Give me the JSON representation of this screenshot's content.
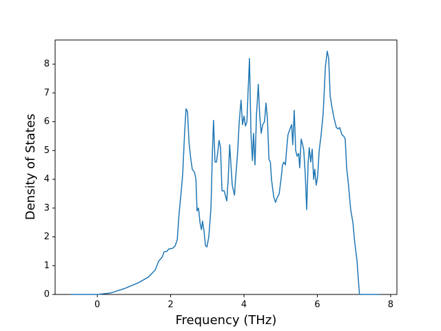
{
  "chart_data": {
    "type": "line",
    "xlabel": "Frequency (THz)",
    "ylabel": "Density of States",
    "xlim": [
      -1.15,
      8.17
    ],
    "ylim": [
      0,
      8.84
    ],
    "xticks": [
      0,
      2,
      4,
      6,
      8
    ],
    "yticks": [
      0,
      1,
      2,
      3,
      4,
      5,
      6,
      7,
      8
    ],
    "series": [
      {
        "color": "#1f77b4",
        "x": [
          -0.73,
          0,
          0.36,
          0.73,
          1.11,
          1.39,
          1.58,
          1.67,
          1.77,
          1.82,
          1.9,
          1.95,
          2.05,
          2.12,
          2.18,
          2.23,
          2.29,
          2.33,
          2.38,
          2.42,
          2.46,
          2.5,
          2.55,
          2.59,
          2.65,
          2.69,
          2.72,
          2.76,
          2.8,
          2.84,
          2.87,
          2.91,
          2.95,
          2.99,
          3.04,
          3.1,
          3.14,
          3.17,
          3.21,
          3.25,
          3.29,
          3.32,
          3.36,
          3.4,
          3.46,
          3.49,
          3.53,
          3.57,
          3.61,
          3.64,
          3.68,
          3.74,
          3.77,
          3.83,
          3.87,
          3.92,
          3.96,
          4.0,
          4.04,
          4.08,
          4.11,
          4.15,
          4.19,
          4.23,
          4.26,
          4.3,
          4.34,
          4.39,
          4.43,
          4.47,
          4.51,
          4.56,
          4.6,
          4.64,
          4.68,
          4.72,
          4.75,
          4.81,
          4.86,
          4.9,
          4.96,
          5.01,
          5.05,
          5.09,
          5.13,
          5.16,
          5.2,
          5.24,
          5.3,
          5.33,
          5.37,
          5.41,
          5.45,
          5.49,
          5.52,
          5.56,
          5.6,
          5.63,
          5.67,
          5.71,
          5.75,
          5.78,
          5.82,
          5.86,
          5.9,
          5.93,
          5.97,
          6.01,
          6.05,
          6.1,
          6.16,
          6.22,
          6.27,
          6.31,
          6.35,
          6.4,
          6.46,
          6.52,
          6.57,
          6.61,
          6.67,
          6.72,
          6.76,
          6.8,
          6.85,
          6.91,
          6.97,
          7.02,
          7.08,
          7.12,
          7.15,
          7.72
        ],
        "values": [
          0,
          0,
          0.05,
          0.2,
          0.4,
          0.6,
          0.85,
          1.15,
          1.3,
          1.48,
          1.5,
          1.58,
          1.6,
          1.68,
          1.9,
          2.8,
          3.6,
          4.2,
          5.6,
          6.45,
          6.35,
          5.3,
          4.7,
          4.35,
          4.25,
          4.0,
          2.9,
          3.0,
          2.5,
          2.25,
          2.55,
          2.2,
          1.7,
          1.65,
          2.0,
          3.0,
          5.0,
          6.05,
          4.6,
          4.6,
          5.0,
          5.35,
          5.1,
          3.6,
          3.6,
          3.45,
          3.25,
          4.0,
          5.2,
          4.6,
          3.8,
          3.45,
          4.0,
          5.0,
          6.0,
          6.75,
          5.9,
          6.2,
          5.85,
          6.0,
          7.0,
          8.2,
          5.6,
          4.65,
          5.6,
          4.5,
          6.2,
          7.3,
          6.2,
          5.6,
          5.9,
          6.0,
          6.65,
          6.1,
          4.7,
          4.6,
          4.0,
          3.4,
          3.2,
          3.35,
          3.5,
          4.0,
          4.5,
          4.6,
          4.5,
          5.0,
          5.55,
          5.7,
          5.9,
          5.2,
          6.4,
          5.0,
          4.8,
          4.9,
          4.4,
          5.4,
          5.2,
          5.0,
          4.2,
          2.95,
          4.6,
          5.1,
          4.6,
          5.05,
          4.0,
          4.35,
          3.8,
          4.1,
          5.0,
          5.5,
          6.3,
          7.9,
          8.45,
          8.2,
          6.9,
          6.5,
          6.1,
          5.8,
          5.75,
          5.8,
          5.55,
          5.5,
          5.4,
          4.4,
          3.8,
          2.95,
          2.5,
          1.8,
          1.2,
          0.5,
          0,
          0
        ]
      }
    ]
  }
}
